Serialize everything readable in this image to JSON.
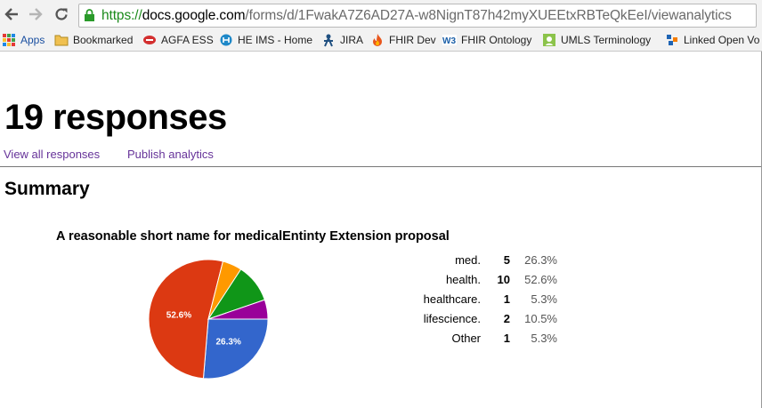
{
  "browser": {
    "url_scheme": "https://",
    "url_host": "docs.google.com",
    "url_path": "/forms/d/1FwakA7Z6AD27A-w8NignT87h42myXUEEtxRBTeQkEeI/viewanalytics"
  },
  "bookmarks": [
    {
      "label": "Apps",
      "icon": "apps-grid-icon"
    },
    {
      "label": "Bookmarked",
      "icon": "folder-icon"
    },
    {
      "label": "AGFA ESS",
      "icon": "agfa-icon"
    },
    {
      "label": "HE IMS - Home",
      "icon": "he-ims-icon"
    },
    {
      "label": "JIRA",
      "icon": "jira-icon"
    },
    {
      "label": "FHIR Dev",
      "icon": "fhir-flame-icon"
    },
    {
      "label": "FHIR Ontology",
      "icon": "w3c-icon"
    },
    {
      "label": "UMLS Terminology",
      "icon": "umls-icon"
    },
    {
      "label": "Linked Open Vo",
      "icon": "lov-icon"
    }
  ],
  "page": {
    "title": "19 responses",
    "link_all": "View all responses",
    "link_publish": "Publish analytics",
    "summary": "Summary"
  },
  "chart_data": {
    "type": "pie",
    "title": "A reasonable short name for medicalEntinty Extension proposal",
    "categories": [
      "med.",
      "health.",
      "healthcare.",
      "lifescience.",
      "Other"
    ],
    "values": [
      5,
      10,
      1,
      2,
      1
    ],
    "percents": [
      "26.3%",
      "52.6%",
      "5.3%",
      "10.5%",
      "5.3%"
    ],
    "colors": [
      "#3366cc",
      "#dc3912",
      "#ff9900",
      "#109618",
      "#990099"
    ],
    "slice_labels": [
      "26.3%",
      "52.6%",
      "",
      "",
      ""
    ]
  }
}
